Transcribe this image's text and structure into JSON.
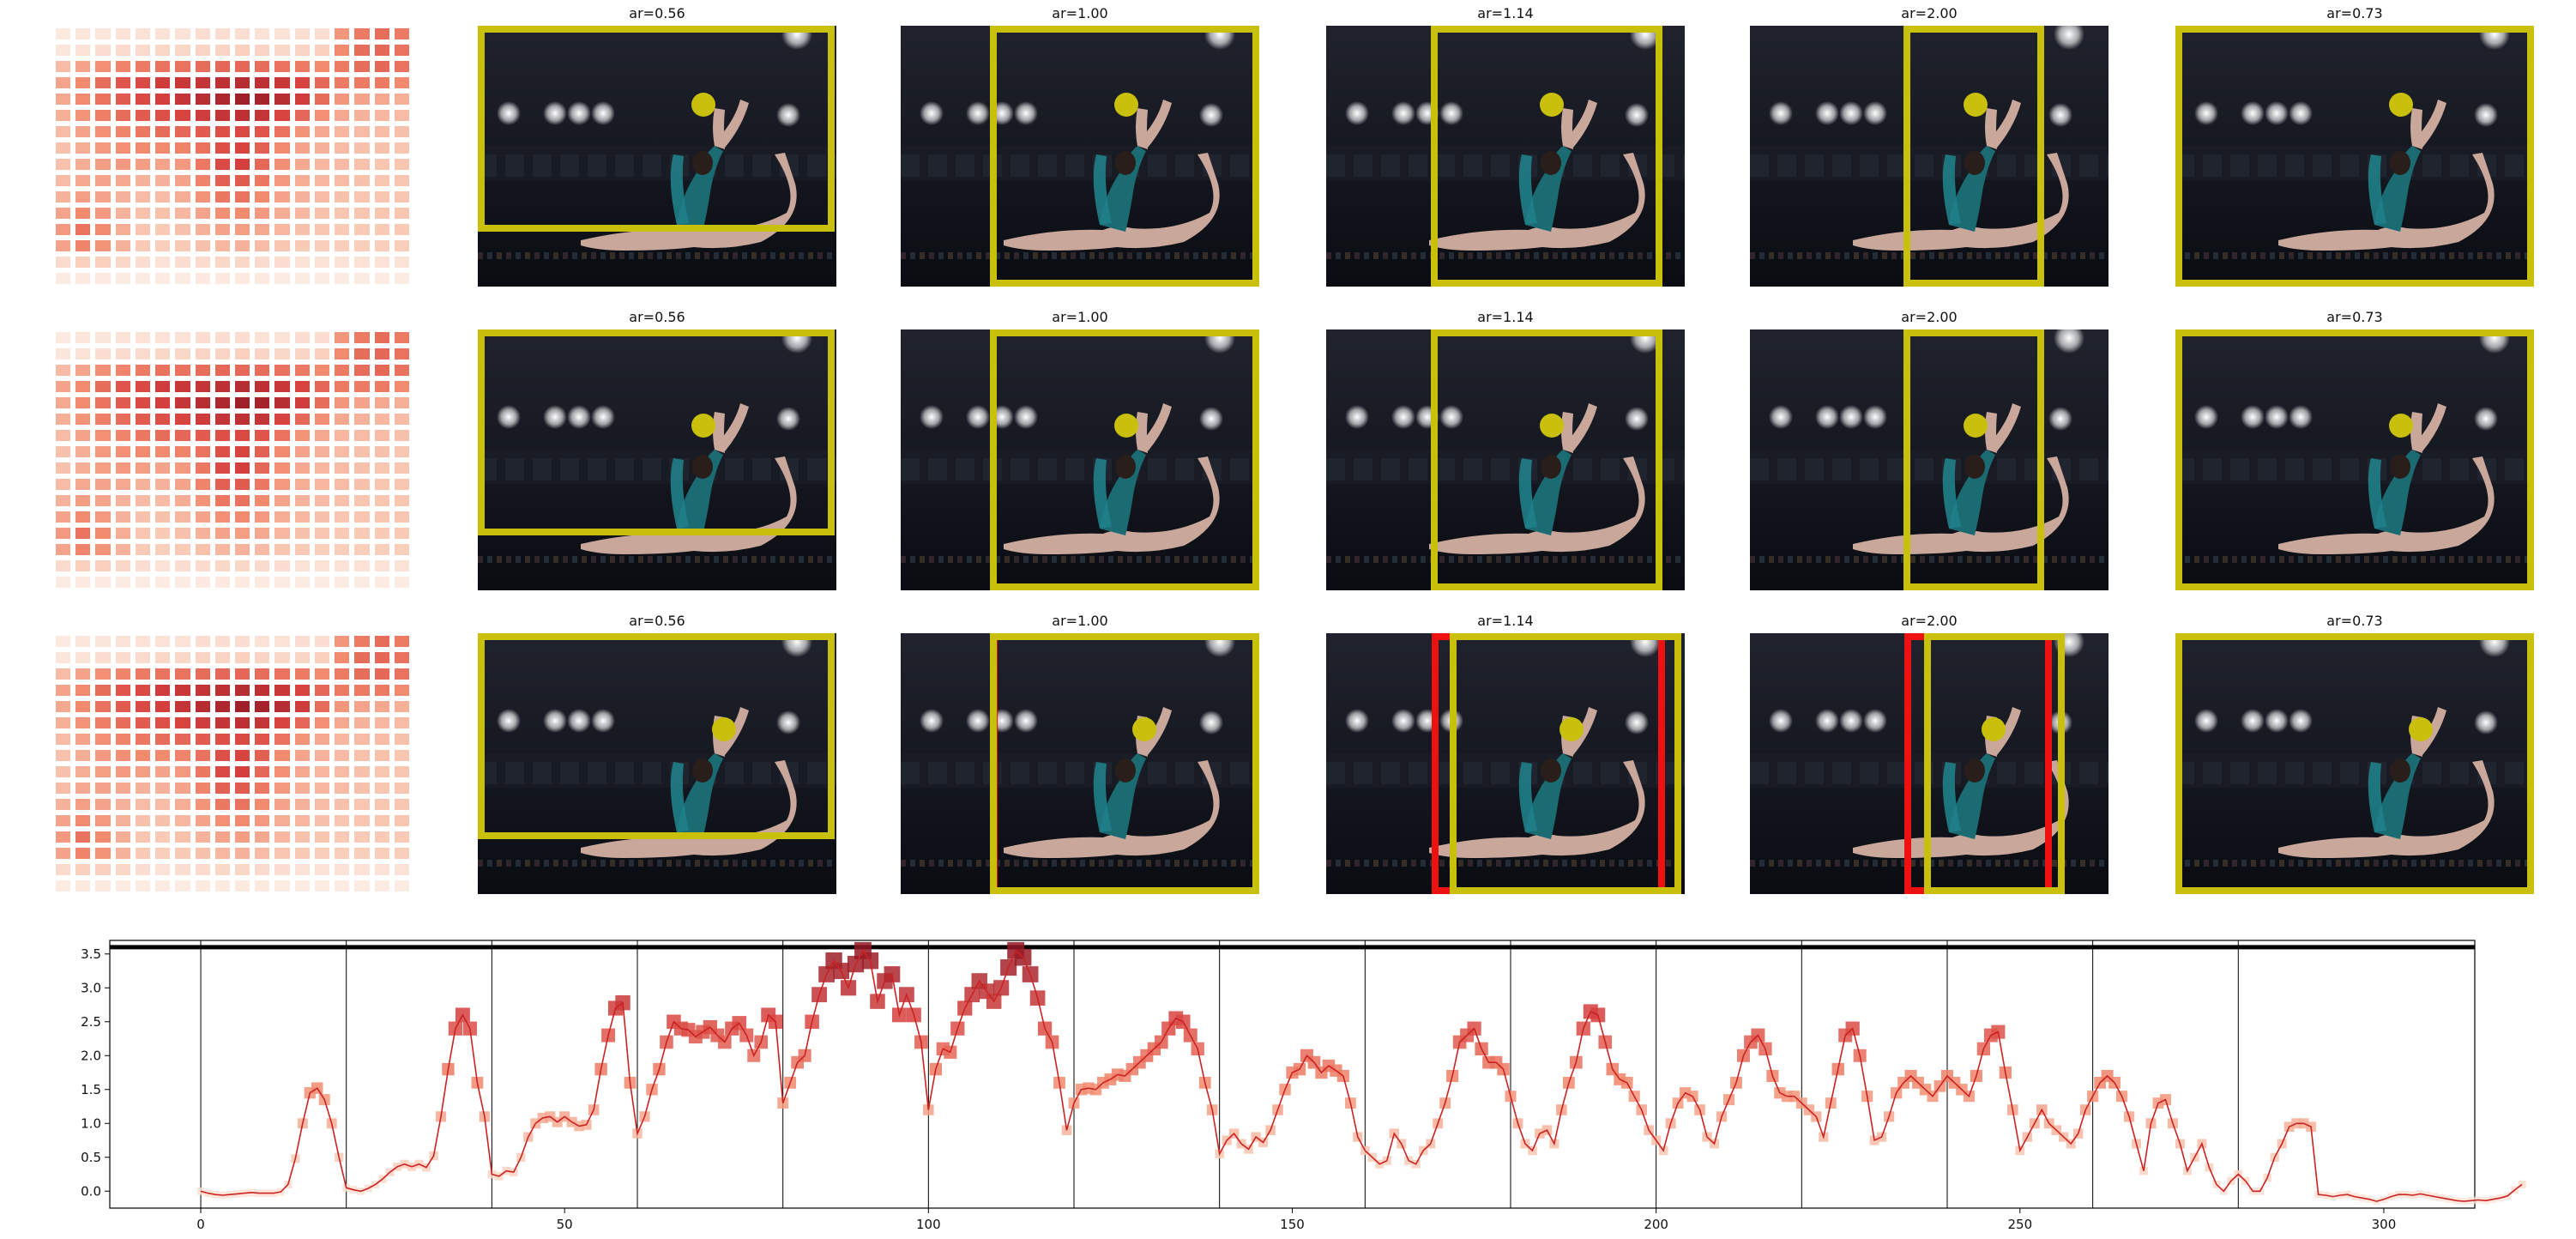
{
  "colors": {
    "crop_box": "#c8c00a",
    "alt_crop_box": "#ee1111",
    "focus_dot": "#c8c00a",
    "heat_low": "#fdeee6",
    "heat_high": "#a8192a",
    "line": "#cc2222",
    "threshold_line": "#000000"
  },
  "figure": {
    "rows": [
      {
        "panels": [
          {
            "title": "",
            "kind": "saliency-heatmap"
          },
          {
            "title": "ar=0.56",
            "kind": "photo-crop",
            "alt_crop": false
          },
          {
            "title": "ar=1.00",
            "kind": "photo-crop",
            "alt_crop": false
          },
          {
            "title": "ar=1.14",
            "kind": "photo-crop",
            "alt_crop": false
          },
          {
            "title": "ar=2.00",
            "kind": "photo-crop",
            "alt_crop": false
          },
          {
            "title": "ar=0.73",
            "kind": "photo-crop",
            "alt_crop": false
          }
        ]
      },
      {
        "panels": [
          {
            "title": "",
            "kind": "saliency-heatmap"
          },
          {
            "title": "ar=0.56",
            "kind": "photo-crop",
            "alt_crop": false
          },
          {
            "title": "ar=1.00",
            "kind": "photo-crop",
            "alt_crop": false
          },
          {
            "title": "ar=1.14",
            "kind": "photo-crop",
            "alt_crop": false
          },
          {
            "title": "ar=2.00",
            "kind": "photo-crop",
            "alt_crop": false
          },
          {
            "title": "ar=0.73",
            "kind": "photo-crop",
            "alt_crop": false
          }
        ]
      },
      {
        "panels": [
          {
            "title": "",
            "kind": "saliency-heatmap"
          },
          {
            "title": "ar=0.56",
            "kind": "photo-crop",
            "alt_crop": false
          },
          {
            "title": "ar=1.00",
            "kind": "photo-crop",
            "alt_crop": true
          },
          {
            "title": "ar=1.14",
            "kind": "photo-crop",
            "alt_crop": true
          },
          {
            "title": "ar=2.00",
            "kind": "photo-crop",
            "alt_crop": true
          },
          {
            "title": "ar=0.73",
            "kind": "photo-crop",
            "alt_crop": false
          }
        ]
      }
    ]
  },
  "chart_data": [
    {
      "type": "heatmap",
      "title": "",
      "rows": 16,
      "cols": 18,
      "values": [
        [
          0.05,
          0.08,
          0.08,
          0.1,
          0.1,
          0.1,
          0.1,
          0.12,
          0.12,
          0.12,
          0.1,
          0.1,
          0.12,
          0.12,
          0.45,
          0.55,
          0.6,
          0.55
        ],
        [
          0.08,
          0.1,
          0.12,
          0.14,
          0.14,
          0.16,
          0.16,
          0.18,
          0.18,
          0.2,
          0.18,
          0.16,
          0.18,
          0.2,
          0.5,
          0.6,
          0.62,
          0.58
        ],
        [
          0.3,
          0.4,
          0.48,
          0.52,
          0.55,
          0.58,
          0.58,
          0.6,
          0.62,
          0.62,
          0.6,
          0.58,
          0.55,
          0.5,
          0.55,
          0.6,
          0.62,
          0.58
        ],
        [
          0.4,
          0.5,
          0.6,
          0.68,
          0.72,
          0.78,
          0.8,
          0.82,
          0.84,
          0.86,
          0.84,
          0.8,
          0.74,
          0.62,
          0.55,
          0.55,
          0.55,
          0.5
        ],
        [
          0.38,
          0.5,
          0.58,
          0.66,
          0.72,
          0.76,
          0.82,
          0.86,
          0.9,
          0.94,
          0.92,
          0.86,
          0.78,
          0.6,
          0.45,
          0.4,
          0.38,
          0.35
        ],
        [
          0.35,
          0.46,
          0.54,
          0.6,
          0.66,
          0.7,
          0.74,
          0.78,
          0.82,
          0.84,
          0.82,
          0.74,
          0.62,
          0.48,
          0.38,
          0.34,
          0.32,
          0.3
        ],
        [
          0.3,
          0.4,
          0.48,
          0.52,
          0.56,
          0.6,
          0.62,
          0.66,
          0.7,
          0.72,
          0.68,
          0.58,
          0.46,
          0.38,
          0.32,
          0.3,
          0.3,
          0.28
        ],
        [
          0.28,
          0.36,
          0.44,
          0.48,
          0.5,
          0.5,
          0.52,
          0.58,
          0.7,
          0.74,
          0.64,
          0.5,
          0.4,
          0.34,
          0.3,
          0.28,
          0.28,
          0.26
        ],
        [
          0.28,
          0.36,
          0.42,
          0.44,
          0.42,
          0.4,
          0.44,
          0.56,
          0.72,
          0.76,
          0.62,
          0.48,
          0.38,
          0.32,
          0.3,
          0.28,
          0.26,
          0.26
        ],
        [
          0.3,
          0.38,
          0.4,
          0.38,
          0.34,
          0.34,
          0.4,
          0.52,
          0.64,
          0.66,
          0.56,
          0.44,
          0.36,
          0.32,
          0.3,
          0.28,
          0.26,
          0.26
        ],
        [
          0.34,
          0.42,
          0.4,
          0.34,
          0.3,
          0.3,
          0.36,
          0.46,
          0.56,
          0.58,
          0.5,
          0.4,
          0.34,
          0.3,
          0.28,
          0.26,
          0.26,
          0.26
        ],
        [
          0.4,
          0.5,
          0.44,
          0.34,
          0.28,
          0.28,
          0.32,
          0.4,
          0.48,
          0.5,
          0.44,
          0.36,
          0.32,
          0.28,
          0.26,
          0.26,
          0.26,
          0.26
        ],
        [
          0.44,
          0.58,
          0.5,
          0.36,
          0.26,
          0.24,
          0.28,
          0.34,
          0.4,
          0.42,
          0.38,
          0.32,
          0.28,
          0.26,
          0.24,
          0.24,
          0.24,
          0.24
        ],
        [
          0.4,
          0.52,
          0.46,
          0.34,
          0.24,
          0.22,
          0.24,
          0.28,
          0.32,
          0.34,
          0.3,
          0.26,
          0.24,
          0.22,
          0.22,
          0.22,
          0.22,
          0.22
        ],
        [
          0.14,
          0.2,
          0.2,
          0.16,
          0.12,
          0.1,
          0.12,
          0.14,
          0.16,
          0.16,
          0.14,
          0.12,
          0.1,
          0.1,
          0.1,
          0.1,
          0.1,
          0.1
        ],
        [
          0.04,
          0.05,
          0.05,
          0.04,
          0.04,
          0.04,
          0.04,
          0.05,
          0.05,
          0.05,
          0.05,
          0.04,
          0.04,
          0.04,
          0.04,
          0.04,
          0.04,
          0.04
        ]
      ]
    },
    {
      "type": "line",
      "title": "",
      "xlabel": "",
      "ylabel": "",
      "xlim": [
        -12.5,
        312.5
      ],
      "ylim": [
        -0.25,
        3.7
      ],
      "x_ticks": [
        0,
        50,
        100,
        150,
        200,
        250,
        300
      ],
      "y_ticks": [
        0.0,
        0.5,
        1.0,
        1.5,
        2.0,
        2.5,
        3.0,
        3.5
      ],
      "threshold": 3.6,
      "segment_boundaries": [
        0,
        20,
        40,
        60,
        80,
        100,
        120,
        140,
        160,
        180,
        200,
        220,
        240,
        260,
        280
      ],
      "grid": false,
      "legend": "none",
      "series": [
        {
          "x_start": 0,
          "values": [
            0.0,
            -0.03,
            -0.05,
            -0.06,
            -0.05,
            -0.04,
            -0.03,
            -0.02,
            -0.03,
            -0.03,
            -0.03,
            -0.01,
            0.1,
            0.48,
            1.0,
            1.45,
            1.52,
            1.35,
            1.0,
            0.5,
            0.05,
            0.02,
            0.0,
            0.04,
            0.1,
            0.18,
            0.28,
            0.36,
            0.4,
            0.36,
            0.4,
            0.35,
            0.52,
            1.1,
            1.8,
            2.4,
            2.6,
            2.4,
            1.6,
            1.1,
            0.25,
            0.22,
            0.3,
            0.28,
            0.5,
            0.8,
            1.0,
            1.08,
            1.1,
            1.02,
            1.1,
            1.02,
            0.96,
            0.98,
            1.2,
            1.8,
            2.3,
            2.7,
            2.78,
            1.6,
            0.85,
            1.1,
            1.5,
            1.8,
            2.2,
            2.5,
            2.4,
            2.38,
            2.28,
            2.35,
            2.42,
            2.3,
            2.2,
            2.4,
            2.48,
            2.3,
            2.0,
            2.2,
            2.6,
            2.5,
            1.3,
            1.6,
            1.9,
            2.0,
            2.5,
            2.9,
            3.2,
            3.4,
            3.25,
            3.0,
            3.35,
            3.55,
            3.4,
            2.8,
            3.1,
            3.2,
            2.6,
            2.9,
            2.6,
            2.2,
            1.2,
            1.8,
            2.1,
            2.05,
            2.4,
            2.7,
            2.9,
            3.1,
            2.95,
            2.8,
            3.0,
            3.3,
            3.55,
            3.45,
            3.2,
            2.85,
            2.4,
            2.2,
            1.6,
            0.9,
            1.3,
            1.5,
            1.52,
            1.5,
            1.6,
            1.65,
            1.72,
            1.7,
            1.8,
            1.9,
            2.0,
            2.1,
            2.2,
            2.4,
            2.55,
            2.5,
            2.3,
            2.1,
            1.6,
            1.2,
            0.55,
            0.75,
            0.85,
            0.7,
            0.62,
            0.8,
            0.72,
            0.9,
            1.2,
            1.5,
            1.75,
            1.8,
            2.0,
            1.9,
            1.75,
            1.85,
            1.78,
            1.7,
            1.3,
            0.8,
            0.6,
            0.5,
            0.4,
            0.45,
            0.85,
            0.7,
            0.45,
            0.4,
            0.6,
            0.7,
            1.0,
            1.3,
            1.7,
            2.2,
            2.3,
            2.4,
            2.1,
            1.9,
            1.9,
            1.8,
            1.4,
            1.0,
            0.7,
            0.6,
            0.85,
            0.9,
            0.7,
            1.2,
            1.6,
            1.9,
            2.4,
            2.65,
            2.6,
            2.2,
            1.8,
            1.65,
            1.6,
            1.4,
            1.2,
            0.9,
            0.75,
            0.6,
            1.0,
            1.3,
            1.45,
            1.4,
            1.2,
            0.8,
            0.7,
            1.1,
            1.35,
            1.6,
            2.0,
            2.2,
            2.3,
            2.1,
            1.7,
            1.45,
            1.4,
            1.4,
            1.3,
            1.2,
            1.1,
            0.8,
            1.3,
            1.8,
            2.3,
            2.4,
            2.0,
            1.4,
            0.75,
            0.8,
            1.1,
            1.45,
            1.6,
            1.7,
            1.6,
            1.5,
            1.4,
            1.55,
            1.7,
            1.6,
            1.5,
            1.4,
            1.7,
            2.1,
            2.3,
            2.35,
            1.75,
            1.2,
            0.6,
            0.8,
            1.0,
            1.2,
            1.0,
            0.9,
            0.8,
            0.7,
            0.85,
            1.2,
            1.4,
            1.6,
            1.7,
            1.6,
            1.4,
            1.1,
            0.7,
            0.3,
            1.0,
            1.3,
            1.35,
            1.0,
            0.7,
            0.3,
            0.5,
            0.7,
            0.35,
            0.1,
            0.0,
            0.15,
            0.25,
            0.15,
            0.0,
            0.0,
            0.2,
            0.5,
            0.7,
            0.95,
            1.0,
            1.0,
            0.95,
            -0.05,
            -0.06,
            -0.08,
            -0.06,
            -0.05,
            -0.08,
            -0.1,
            -0.12,
            -0.15,
            -0.12,
            -0.08,
            -0.05,
            -0.05,
            -0.06,
            -0.04,
            -0.06,
            -0.08,
            -0.1,
            -0.12,
            -0.14,
            -0.15,
            -0.14,
            -0.13,
            -0.14,
            -0.12,
            -0.1,
            -0.07,
            0.02,
            0.1
          ]
        }
      ]
    }
  ]
}
